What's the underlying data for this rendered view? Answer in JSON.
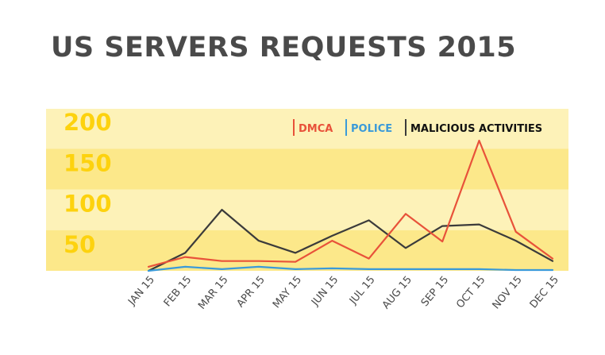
{
  "chart_data": {
    "type": "line",
    "title": "US SERVERS REQUESTS 2015",
    "categories": [
      "JAN 15",
      "FEB 15",
      "MAR 15",
      "APR 15",
      "MAY 15",
      "JUN 15",
      "JUL 15",
      "AUG 15",
      "SEP 15",
      "OCT 15",
      "NOV 15",
      "DEC 15"
    ],
    "yticks": [
      50,
      100,
      150,
      200
    ],
    "ylim": [
      0,
      200
    ],
    "legend_position": "top-right",
    "series": [
      {
        "name": "DMCA",
        "color": "#e8523a",
        "values": [
          5,
          17,
          12,
          12,
          11,
          37,
          15,
          70,
          36,
          160,
          48,
          15
        ]
      },
      {
        "name": "POLICE",
        "color": "#3a9ad9",
        "values": [
          0,
          5,
          2,
          5,
          2,
          3,
          2,
          2,
          2,
          2,
          1,
          1
        ]
      },
      {
        "name": "MALICIOUS ACTIVITIES",
        "color": "#3b3b3b",
        "values": [
          0,
          22,
          75,
          37,
          22,
          43,
          62,
          28,
          55,
          57,
          37,
          12
        ]
      }
    ],
    "band_colors": [
      "#fdf2b8",
      "#fce88a"
    ]
  }
}
